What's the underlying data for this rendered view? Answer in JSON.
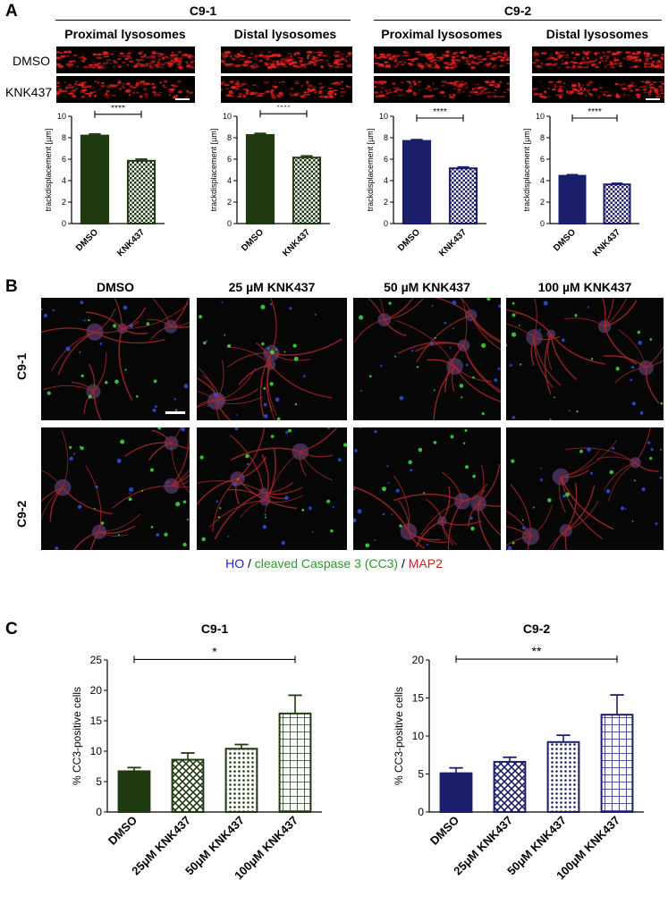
{
  "panel_a": {
    "letter": "A",
    "groups": [
      "C9-1",
      "C9-2"
    ],
    "subtitles": [
      "Proximal lysosomes",
      "Distal lysosomes",
      "Proximal lysosomes",
      "Distal lysosomes"
    ],
    "row_labels": [
      "DMSO",
      "KNK437"
    ]
  },
  "panel_b": {
    "letter": "B",
    "column_labels": [
      "DMSO",
      "25 µM KNK437",
      "50 µM KNK437",
      "100 µM KNK437"
    ],
    "row_labels": [
      "C9-1",
      "C9-2"
    ],
    "legend": {
      "ho": "HO",
      "sep1": " / ",
      "cc3": "cleaved Caspase 3 (CC3)",
      "sep2": " / ",
      "map2": "MAP2"
    }
  },
  "panel_c": {
    "letter": "C"
  },
  "colors": {
    "dark_green": "#1f3a10",
    "dark_navy": "#1b1f6b",
    "lysosome_red": "#e02020",
    "ho_blue": "#2020d0",
    "cc3_green": "#2a9a2a",
    "map2_red": "#d02020"
  },
  "chart_data": [
    {
      "type": "bar",
      "panel": "A",
      "title": "",
      "categories": [
        "DMSO",
        "KNK437"
      ],
      "values": [
        8.2,
        5.85
      ],
      "errors": [
        0.15,
        0.15
      ],
      "ylabel": "trackdisplacement [µm]",
      "ylim": [
        0,
        10
      ],
      "yticks": [
        0,
        2,
        4,
        6,
        8,
        10
      ],
      "significance": "****",
      "fills": [
        "solid",
        "checker"
      ],
      "color": "#1f3a10"
    },
    {
      "type": "bar",
      "panel": "A",
      "title": "",
      "categories": [
        "DMSO",
        "KNK437"
      ],
      "values": [
        8.25,
        6.15
      ],
      "errors": [
        0.15,
        0.15
      ],
      "ylabel": "trackdisplacement [µm]",
      "ylim": [
        0,
        10
      ],
      "yticks": [
        0,
        2,
        4,
        6,
        8,
        10
      ],
      "significance": "****",
      "fills": [
        "solid",
        "checker"
      ],
      "color": "#1f3a10"
    },
    {
      "type": "bar",
      "panel": "A",
      "title": "",
      "categories": [
        "DMSO",
        "KNK437"
      ],
      "values": [
        7.7,
        5.15
      ],
      "errors": [
        0.12,
        0.12
      ],
      "ylabel": "trackdisplacement [µm]",
      "ylim": [
        0,
        10
      ],
      "yticks": [
        0,
        2,
        4,
        6,
        8,
        10
      ],
      "significance": "****",
      "fills": [
        "solid",
        "checker"
      ],
      "color": "#1b1f6b"
    },
    {
      "type": "bar",
      "panel": "A",
      "title": "",
      "categories": [
        "DMSO",
        "KNK437"
      ],
      "values": [
        4.45,
        3.65
      ],
      "errors": [
        0.1,
        0.1
      ],
      "ylabel": "trackdisplacement [µm]",
      "ylim": [
        0,
        10
      ],
      "yticks": [
        0,
        2,
        4,
        6,
        8,
        10
      ],
      "significance": "****",
      "fills": [
        "solid",
        "checker"
      ],
      "color": "#1b1f6b"
    },
    {
      "type": "bar",
      "panel": "C",
      "title": "C9-1",
      "categories": [
        "DMSO",
        "25μM KNK437",
        "50μM KNK437",
        "100μM KNK437"
      ],
      "values": [
        6.7,
        8.6,
        10.4,
        16.2
      ],
      "errors": [
        0.6,
        1.1,
        0.7,
        3.0
      ],
      "ylabel": "% CC3-positive cells",
      "ylim": [
        0,
        25
      ],
      "yticks": [
        0,
        5,
        10,
        15,
        20,
        25
      ],
      "significance": "*",
      "fills": [
        "solid",
        "diamond",
        "dots",
        "grid"
      ],
      "color": "#1f3a10"
    },
    {
      "type": "bar",
      "panel": "C",
      "title": "C9-2",
      "categories": [
        "DMSO",
        "25μM KNK437",
        "50μM KNK437",
        "100μM KNK437"
      ],
      "values": [
        5.1,
        6.6,
        9.2,
        12.8
      ],
      "errors": [
        0.7,
        0.6,
        0.9,
        2.6
      ],
      "ylabel": "% CC3-positive cells",
      "ylim": [
        0,
        20
      ],
      "yticks": [
        0,
        5,
        10,
        15,
        20
      ],
      "significance": "**",
      "fills": [
        "solid",
        "diamond",
        "dots",
        "grid"
      ],
      "color": "#1b1f6b"
    }
  ]
}
